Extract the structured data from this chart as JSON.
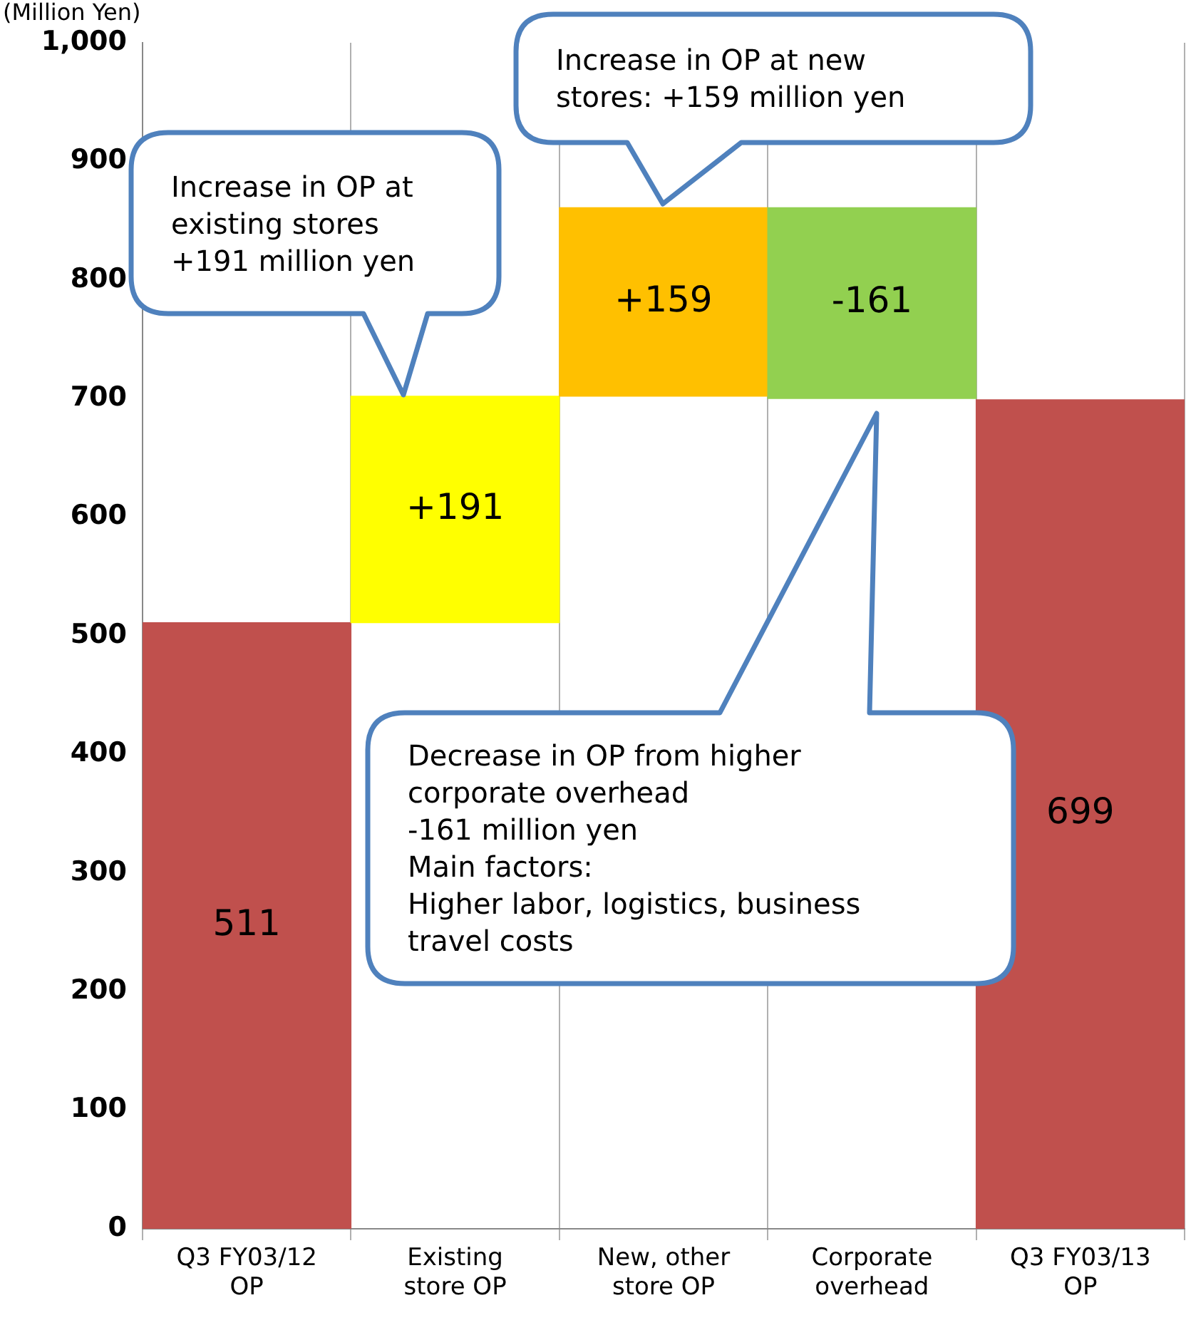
{
  "chart_data": {
    "type": "bar",
    "ylabel": "(Million Yen)",
    "categories": [
      "Q3 FY03/12 OP",
      "Existing store OP",
      "New, other store OP",
      "Corporate overhead",
      "Q3 FY03/13 OP"
    ],
    "values": [
      511,
      191,
      159,
      -161,
      699
    ],
    "base": [
      0,
      511,
      702,
      861,
      0
    ],
    "colors": [
      "#c0504d",
      "#ffff00",
      "#ffc000",
      "#92d050",
      "#c0504d"
    ],
    "value_labels": [
      "511",
      "+191",
      "+159",
      "-161",
      "699"
    ],
    "ylim": [
      0,
      1000
    ],
    "yticks": [
      0,
      100,
      200,
      300,
      400,
      500,
      600,
      700,
      800,
      900,
      {
        "value": 1000,
        "label": "1,000"
      }
    ],
    "grid": "x",
    "annotations": [
      "Increase in OP at\nexisting stores\n+191 million yen",
      "Increase in OP at new\nstores: +159 million yen",
      "Decrease in OP from higher\ncorporate overhead\n-161 million yen\nMain factors:\nHigher labor, logistics, business\ntravel costs"
    ]
  }
}
